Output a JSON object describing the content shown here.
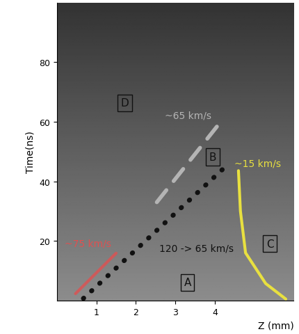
{
  "chart_data": {
    "type": "streak_image",
    "xlabel": "Z (mm)",
    "ylabel": "Time(ns)",
    "xlim": [
      0,
      6.0
    ],
    "ylim": [
      0,
      100
    ],
    "xticks": [
      1,
      2,
      3,
      4
    ],
    "yticks": [
      20,
      40,
      60,
      80
    ],
    "grid": false,
    "lines": [
      {
        "label": "~75 km/s",
        "color": "#e05050",
        "line_style": "solid",
        "x": [
          0.47,
          1.5
        ],
        "y": [
          2.3,
          15.9
        ],
        "label_at": [
          0.2,
          17.5
        ]
      },
      {
        "label": "120 -> 65 km/s",
        "color": "#111111",
        "line_style": "dotted",
        "x": [
          0.67,
          4.26
        ],
        "y": [
          0.7,
          44.8
        ],
        "label_at": [
          2.6,
          16
        ]
      },
      {
        "label": "~65 km/s",
        "color": "#b4b4b4",
        "line_style": "dashed",
        "x": [
          2.53,
          4.09
        ],
        "y": [
          33,
          59
        ],
        "label_at": [
          2.74,
          60.7
        ]
      },
      {
        "label": "~15 km/s",
        "color": "#e8e040",
        "line_style": "solid",
        "x": [
          4.6,
          4.65,
          4.78,
          5.29,
          5.8
        ],
        "y": [
          43.6,
          30,
          16,
          5.7,
          0.5
        ],
        "label_at": [
          4.5,
          44.5
        ]
      }
    ],
    "regions": [
      {
        "label": "A",
        "at": [
          3.31,
          6.1
        ]
      },
      {
        "label": "B",
        "at": [
          3.95,
          48.2
        ]
      },
      {
        "label": "C",
        "at": [
          5.4,
          19.1
        ]
      },
      {
        "label": "D",
        "at": [
          1.72,
          66.4
        ]
      }
    ]
  }
}
